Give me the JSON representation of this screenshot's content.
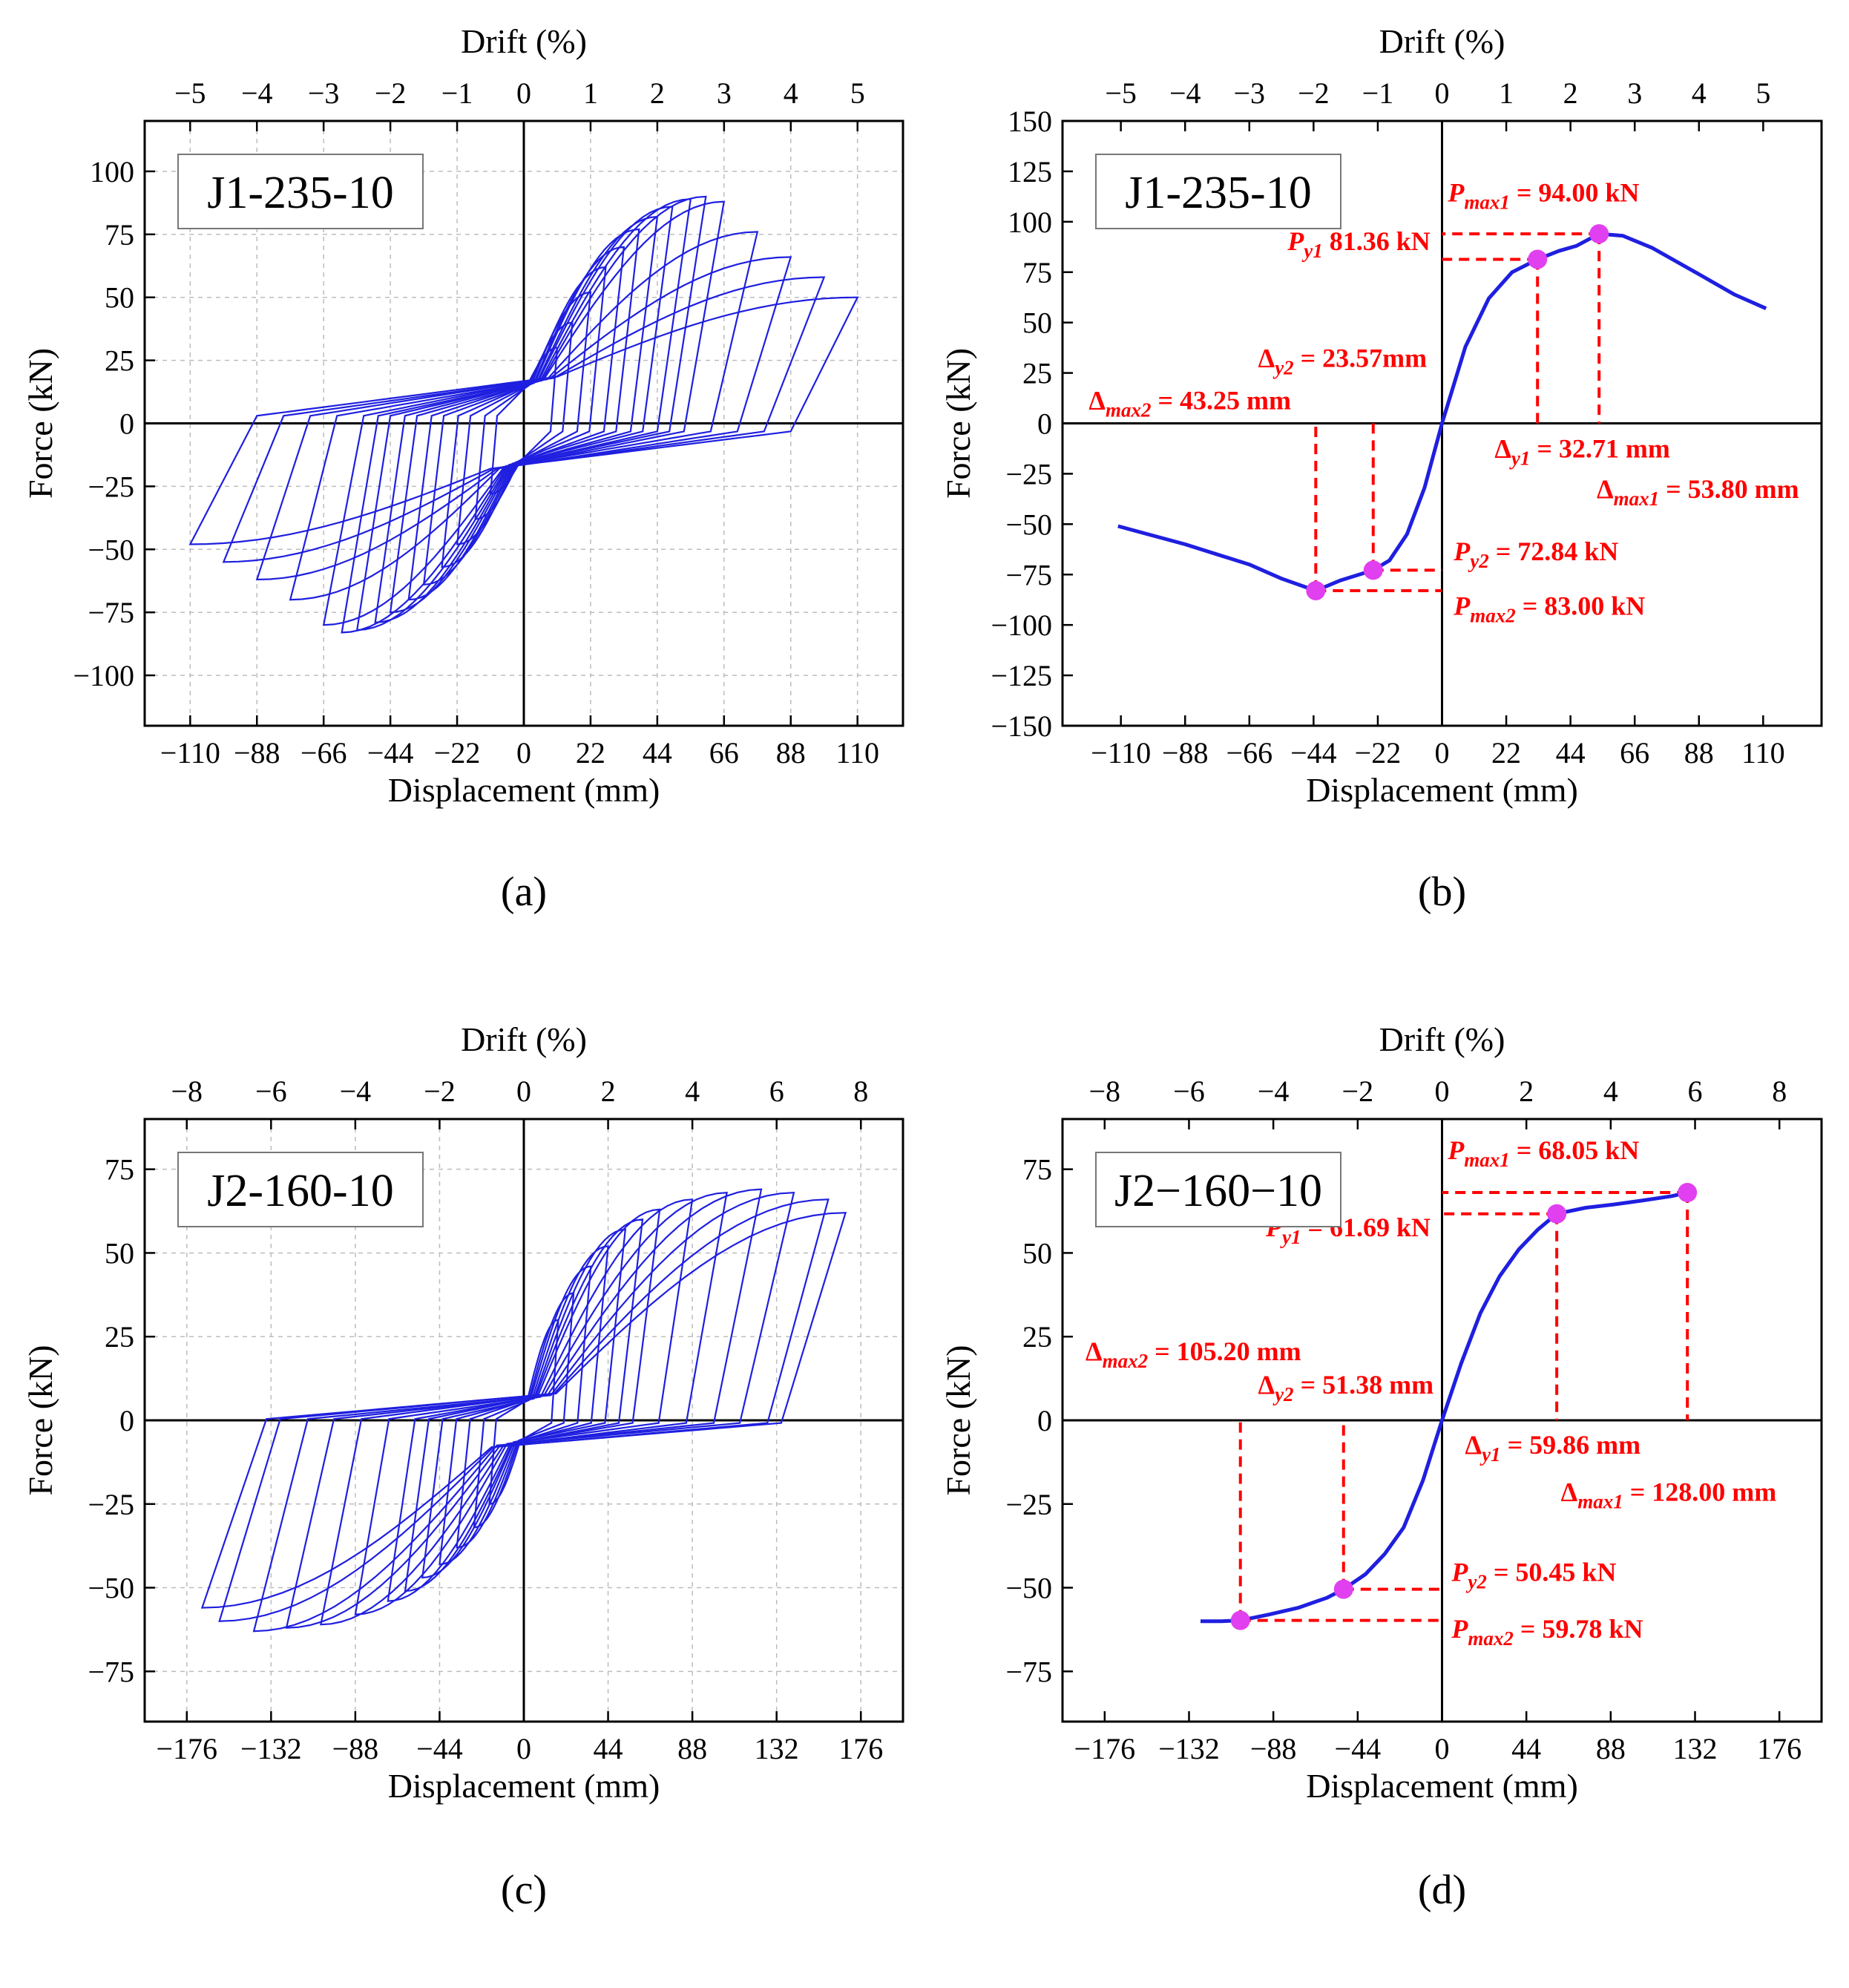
{
  "chart_data": [
    {
      "type": "line",
      "panel_label": "(a)",
      "specimen": "J1-235-10",
      "xlabel": "Displacement (mm)",
      "ylabel": "Force (kN)",
      "x2label": "Drift (%)",
      "xlim": [
        -125,
        125
      ],
      "ylim": [
        -120,
        120
      ],
      "x_ticks": [
        -110,
        -88,
        -66,
        -44,
        -22,
        0,
        22,
        44,
        66,
        88,
        110
      ],
      "x_tick_labels": [
        "−110",
        "−88",
        "−66",
        "−44",
        "−22",
        "0",
        "22",
        "44",
        "66",
        "88",
        "110"
      ],
      "y_ticks": [
        -100,
        -75,
        -50,
        -25,
        0,
        25,
        50,
        75,
        100
      ],
      "y_tick_labels": [
        "−100",
        "−75",
        "−50",
        "−25",
        "0",
        "25",
        "50",
        "75",
        "100"
      ],
      "x2_ticks": [
        -5,
        -4,
        -3,
        -2,
        -1,
        0,
        1,
        2,
        3,
        4,
        5
      ],
      "x2_tick_labels": [
        "−5",
        "−4",
        "−3",
        "−2",
        "−1",
        "0",
        "1",
        "2",
        "3",
        "4",
        "5"
      ],
      "x2_per_x": 0.04545,
      "grid": true,
      "line_color": "#1f1fe0",
      "series": [
        {
          "kind": "hysteresis",
          "amplitudes": [
            11,
            16,
            22,
            27,
            33,
            38,
            44,
            49,
            55,
            60,
            66,
            77,
            88,
            99,
            110
          ],
          "peak_pos": [
            30,
            40,
            52,
            62,
            70,
            77,
            82,
            86,
            89,
            90,
            88,
            76,
            66,
            58,
            50
          ],
          "peak_neg": [
            -28,
            -38,
            -48,
            -57,
            -64,
            -70,
            -75,
            -79,
            -82,
            -83,
            -80,
            -70,
            -62,
            -55,
            -48
          ],
          "reload_pos": [
            30,
            30,
            31,
            32,
            32,
            33,
            33,
            34,
            34,
            34,
            35,
            35,
            36,
            36,
            37
          ],
          "reload_neg": [
            -30,
            -30,
            -31,
            -31,
            -32,
            -32,
            -33,
            -33,
            -34,
            -34,
            -35,
            -35,
            -36,
            -36,
            -36
          ],
          "plateau_pos": 15,
          "plateau_neg": -16
        }
      ]
    },
    {
      "type": "line",
      "panel_label": "(b)",
      "specimen": "J1-235-10",
      "xlabel": "Displacement (mm)",
      "ylabel": "Force (kN)",
      "x2label": "Drift (%)",
      "xlim": [
        -130,
        130
      ],
      "ylim": [
        -150,
        150
      ],
      "x_ticks": [
        -110,
        -88,
        -66,
        -44,
        -22,
        0,
        22,
        44,
        66,
        88,
        110
      ],
      "x_tick_labels": [
        "−110",
        "−88",
        "−66",
        "−44",
        "−22",
        "0",
        "22",
        "44",
        "66",
        "88",
        "110"
      ],
      "y_ticks": [
        -150,
        -125,
        -100,
        -75,
        -50,
        -25,
        0,
        25,
        50,
        75,
        100,
        125,
        150
      ],
      "y_tick_labels": [
        "−150",
        "−125",
        "−100",
        "−75",
        "−50",
        "−25",
        "0",
        "25",
        "50",
        "75",
        "100",
        "125",
        "150"
      ],
      "x2_ticks": [
        -5,
        -4,
        -3,
        -2,
        -1,
        0,
        1,
        2,
        3,
        4,
        5
      ],
      "x2_tick_labels": [
        "−5",
        "−4",
        "−3",
        "−2",
        "−1",
        "0",
        "1",
        "2",
        "3",
        "4",
        "5"
      ],
      "x2_per_x": 0.04545,
      "grid": false,
      "line_color": "#1f1fe0",
      "marker_color": "#e040ef",
      "series": [
        {
          "kind": "skeleton",
          "x": [
            -111,
            -88,
            -66,
            -55,
            -43.25,
            -35,
            -23.57,
            -18,
            -12,
            -6,
            0,
            8,
            16,
            24,
            32.71,
            40,
            46,
            53.8,
            62,
            72,
            88,
            100,
            111
          ],
          "y": [
            -51,
            -60,
            -70,
            -77,
            -83,
            -78,
            -72.84,
            -68,
            -55,
            -32,
            0,
            38,
            62,
            75,
            81.36,
            85.5,
            88,
            94,
            93,
            87,
            74,
            64,
            57
          ]
        }
      ],
      "points": [
        {
          "x": 32.71,
          "y": 81.36
        },
        {
          "x": 53.8,
          "y": 94
        },
        {
          "x": -23.57,
          "y": -72.84
        },
        {
          "x": -43.25,
          "y": -83
        }
      ],
      "annotations": [
        {
          "name": "pmax1",
          "sym": "P",
          "sub": "max1",
          "text": " = 94.00 kN",
          "x": 2,
          "y": 110,
          "anchor": "start"
        },
        {
          "name": "py1",
          "sym": "P",
          "sub": "y1",
          "text": "  81.36 kN",
          "x": -4,
          "y": 86,
          "anchor": "end"
        },
        {
          "name": "dy2",
          "sym": "Δ",
          "sub": "y2",
          "text": " = 23.57mm",
          "x": -63,
          "y": 28,
          "anchor": "start"
        },
        {
          "name": "dmax2",
          "sym": "Δ",
          "sub": "max2",
          "text": " = 43.25 mm",
          "x": -121,
          "y": 7,
          "anchor": "start"
        },
        {
          "name": "dy1",
          "sym": "Δ",
          "sub": "y1",
          "text": " = 32.71 mm",
          "x": 18,
          "y": -17,
          "anchor": "start"
        },
        {
          "name": "dmax1",
          "sym": "Δ",
          "sub": "max1",
          "text": " = 53.80 mm",
          "x": 53,
          "y": -37,
          "anchor": "start"
        },
        {
          "name": "py2",
          "sym": "P",
          "sub": "y2",
          "text": " = 72.84 kN",
          "x": 4,
          "y": -68,
          "anchor": "start"
        },
        {
          "name": "pmax2",
          "sym": "P",
          "sub": "max2",
          "text": " = 83.00 kN",
          "x": 4,
          "y": -95,
          "anchor": "start"
        }
      ]
    },
    {
      "type": "line",
      "panel_label": "(c)",
      "specimen": "J2-160-10",
      "xlabel": "Displacement (mm)",
      "ylabel": "Force (kN)",
      "x2label": "Drift (%)",
      "xlim": [
        -198,
        198
      ],
      "ylim": [
        -90,
        90
      ],
      "x_ticks": [
        -176,
        -132,
        -88,
        -44,
        0,
        44,
        88,
        132,
        176
      ],
      "x_tick_labels": [
        "−176",
        "−132",
        "−88",
        "−44",
        "0",
        "44",
        "88",
        "132",
        "176"
      ],
      "y_ticks": [
        -75,
        -50,
        -25,
        0,
        25,
        50,
        75
      ],
      "y_tick_labels": [
        "−75",
        "−50",
        "−25",
        "0",
        "25",
        "50",
        "75"
      ],
      "x2_ticks": [
        -8,
        -6,
        -4,
        -2,
        0,
        2,
        4,
        6,
        8
      ],
      "x2_tick_labels": [
        "−8",
        "−6",
        "−4",
        "−2",
        "0",
        "2",
        "4",
        "6",
        "8"
      ],
      "x2_per_x": 0.04545,
      "grid": true,
      "line_color": "#1f1fe0",
      "series": [
        {
          "kind": "hysteresis",
          "amplitudes": [
            18,
            26,
            35,
            44,
            53,
            62,
            71,
            88,
            106,
            124,
            141,
            159,
            168
          ],
          "peak_pos": [
            30,
            38,
            46,
            52,
            57,
            60,
            63,
            66,
            68,
            69,
            68,
            66,
            62
          ],
          "peak_neg": [
            -25,
            -32,
            -38,
            -43,
            -47,
            -51,
            -54,
            -58,
            -61,
            -62,
            -63,
            -60,
            -56
          ],
          "reload_pos": [
            12,
            12,
            13,
            13,
            13,
            14,
            14,
            14,
            15,
            15,
            15,
            16,
            16
          ],
          "reload_neg": [
            -12,
            -12,
            -13,
            -13,
            -13,
            -14,
            -14,
            -14,
            -15,
            -15,
            -15,
            -16,
            -16
          ],
          "plateau_pos": 2,
          "plateau_neg": -4
        }
      ]
    },
    {
      "type": "line",
      "panel_label": "(d)",
      "specimen": "J2−160−10",
      "xlabel": "Displacement (mm)",
      "ylabel": "Force (kN)",
      "x2label": "Drift (%)",
      "xlim": [
        -198,
        198
      ],
      "ylim": [
        -90,
        90
      ],
      "x_ticks": [
        -176,
        -132,
        -88,
        -44,
        0,
        44,
        88,
        132,
        176
      ],
      "x_tick_labels": [
        "−176",
        "−132",
        "−88",
        "−44",
        "0",
        "44",
        "88",
        "132",
        "176"
      ],
      "y_ticks": [
        -75,
        -50,
        -25,
        0,
        25,
        50,
        75
      ],
      "y_tick_labels": [
        "−75",
        "−50",
        "−25",
        "0",
        "25",
        "50",
        "75"
      ],
      "x2_ticks": [
        -8,
        -6,
        -4,
        -2,
        0,
        2,
        4,
        6,
        8
      ],
      "x2_tick_labels": [
        "−8",
        "−6",
        "−4",
        "−2",
        "0",
        "2",
        "4",
        "6",
        "8"
      ],
      "x2_per_x": 0.04545,
      "grid": false,
      "line_color": "#1f1fe0",
      "marker_color": "#e040ef",
      "series": [
        {
          "kind": "skeleton",
          "x": [
            -126,
            -115,
            -105.2,
            -90,
            -75,
            -60,
            -51.38,
            -40,
            -30,
            -20,
            -10,
            0,
            10,
            20,
            30,
            40,
            50,
            59.86,
            75,
            90,
            105,
            120,
            128
          ],
          "y": [
            -60,
            -60,
            -59.78,
            -58,
            -56,
            -53,
            -50.45,
            -46,
            -40,
            -32,
            -18,
            0,
            17,
            32,
            43,
            51,
            57,
            61.69,
            63.5,
            64.5,
            65.7,
            67,
            68.05
          ]
        }
      ],
      "points": [
        {
          "x": 59.86,
          "y": 61.69
        },
        {
          "x": 128,
          "y": 68.05
        },
        {
          "x": -51.38,
          "y": -50.45
        },
        {
          "x": -105.2,
          "y": -59.78
        }
      ],
      "annotations": [
        {
          "name": "pmax1",
          "sym": "P",
          "sub": "max1",
          "text": " = 68.05 kN",
          "x": 3,
          "y": 78,
          "anchor": "start"
        },
        {
          "name": "py1",
          "sym": "P",
          "sub": "y1",
          "text": " = 61.69 kN",
          "x": -6,
          "y": 55,
          "anchor": "end"
        },
        {
          "name": "dmax2",
          "sym": "Δ",
          "sub": "max2",
          "text": " = 105.20 mm",
          "x": -186,
          "y": 18,
          "anchor": "start"
        },
        {
          "name": "dy2",
          "sym": "Δ",
          "sub": "y2",
          "text": " = 51.38 mm",
          "x": -96,
          "y": 8,
          "anchor": "start"
        },
        {
          "name": "dy1",
          "sym": "Δ",
          "sub": "y1",
          "text": " = 59.86 mm",
          "x": 12,
          "y": -10,
          "anchor": "start"
        },
        {
          "name": "dmax1",
          "sym": "Δ",
          "sub": "max1",
          "text": " = 128.00 mm",
          "x": 62,
          "y": -24,
          "anchor": "start"
        },
        {
          "name": "py2",
          "sym": "P",
          "sub": "y2",
          "text": " = 50.45 kN",
          "x": 5,
          "y": -48,
          "anchor": "start"
        },
        {
          "name": "pmax2",
          "sym": "P",
          "sub": "max2",
          "text": " = 59.78 kN",
          "x": 5,
          "y": -65,
          "anchor": "start"
        }
      ]
    }
  ]
}
